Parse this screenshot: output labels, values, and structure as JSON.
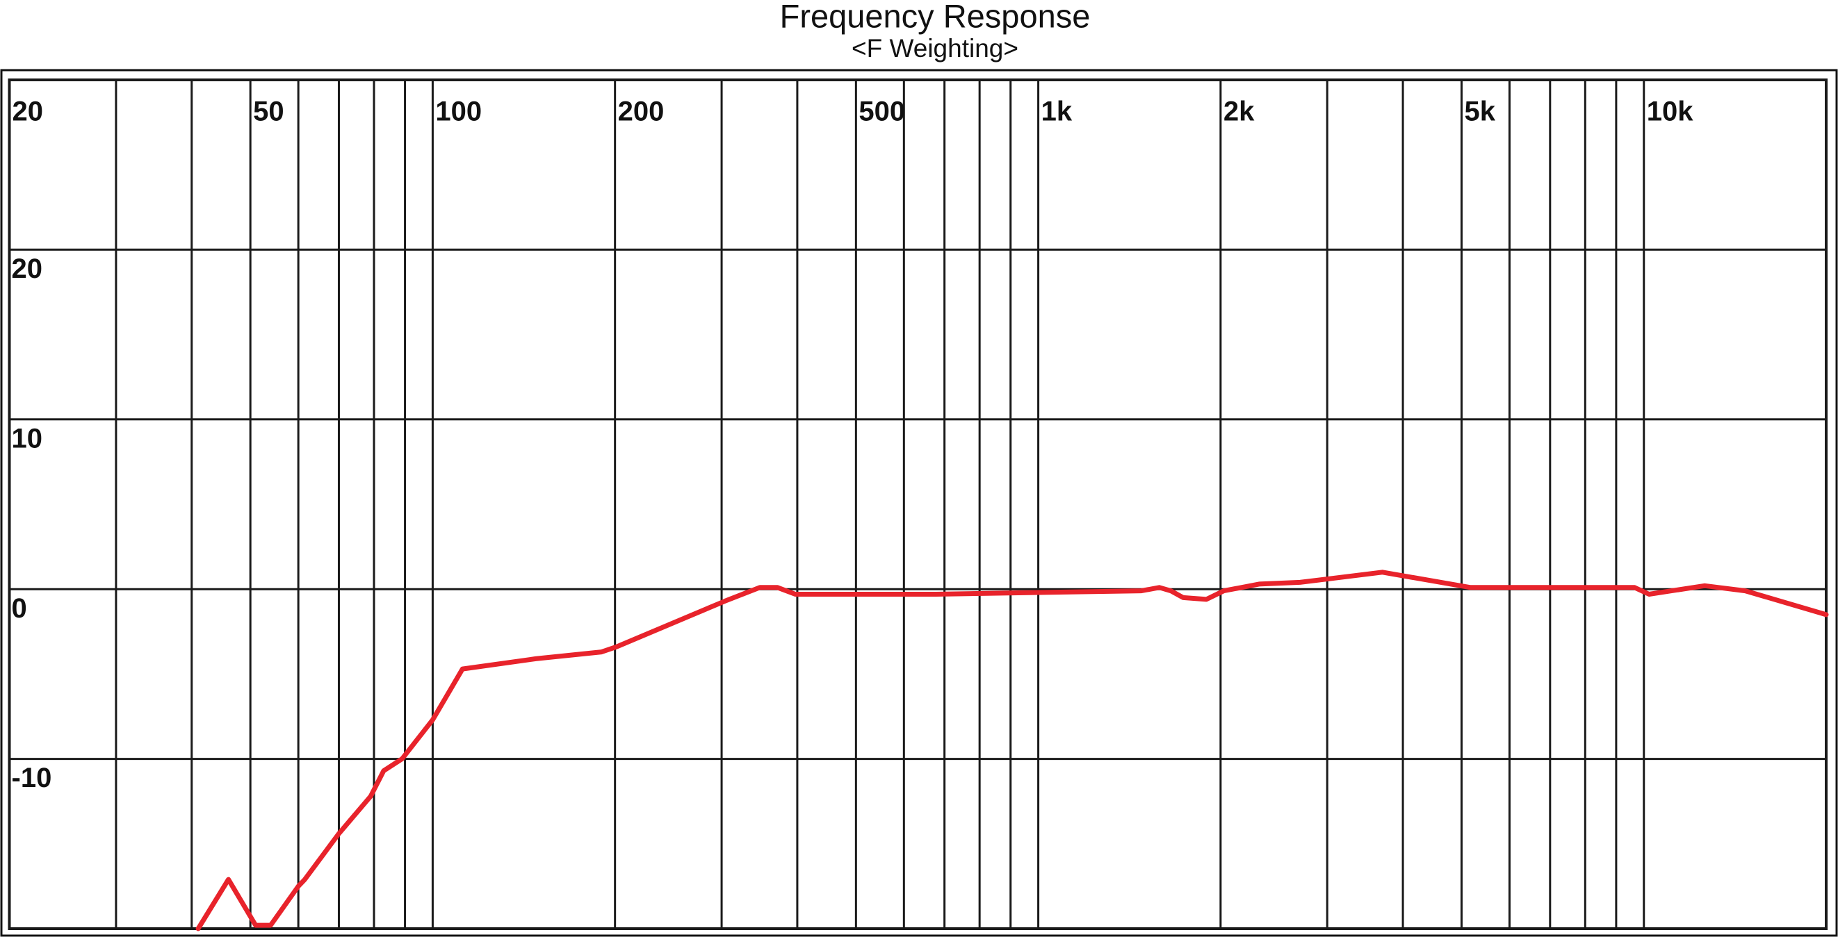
{
  "chart_data": {
    "type": "line",
    "title": "Frequency Response",
    "subtitle": "<F Weighting>",
    "xscale": "log",
    "xlim": [
      20,
      20000
    ],
    "ylim": [
      -20,
      30
    ],
    "xticks": [
      20,
      50,
      100,
      200,
      500,
      {
        "value": 1000,
        "label": "1k"
      },
      {
        "value": 2000,
        "label": "2k"
      },
      {
        "value": 5000,
        "label": "5k"
      },
      {
        "value": 10000,
        "label": "10k"
      }
    ],
    "xminor_ticks": [
      30,
      40,
      60,
      70,
      80,
      90,
      300,
      400,
      600,
      700,
      800,
      900,
      3000,
      4000,
      6000,
      7000,
      8000,
      9000
    ],
    "yticks": [
      -10,
      0,
      10,
      20
    ],
    "grid": true,
    "grid_color": "#1a1a1a",
    "color": "#e8232b",
    "x": [
      41,
      46,
      51,
      54,
      60,
      61.5,
      70,
      79,
      83,
      89,
      100,
      112,
      148,
      190,
      201,
      304,
      347,
      371,
      397,
      678,
      1480,
      1585,
      1655,
      1735,
      1895,
      2025,
      2315,
      2705,
      3700,
      5170,
      6600,
      9650,
      10200,
      12600,
      14700,
      20000
    ],
    "values": [
      -20,
      -17.1,
      -19.8,
      -19.8,
      -17.5,
      -17.1,
      -14.4,
      -12.2,
      -10.7,
      -10,
      -7.7,
      -4.7,
      -4.1,
      -3.7,
      -3.4,
      -0.7,
      0.1,
      0.1,
      -0.3,
      -0.3,
      -0.1,
      0.1,
      -0.1,
      -0.5,
      -0.6,
      -0.1,
      0.3,
      0.4,
      1.0,
      0.1,
      0.1,
      0.1,
      -0.3,
      0.2,
      -0.1,
      -1.5
    ]
  }
}
